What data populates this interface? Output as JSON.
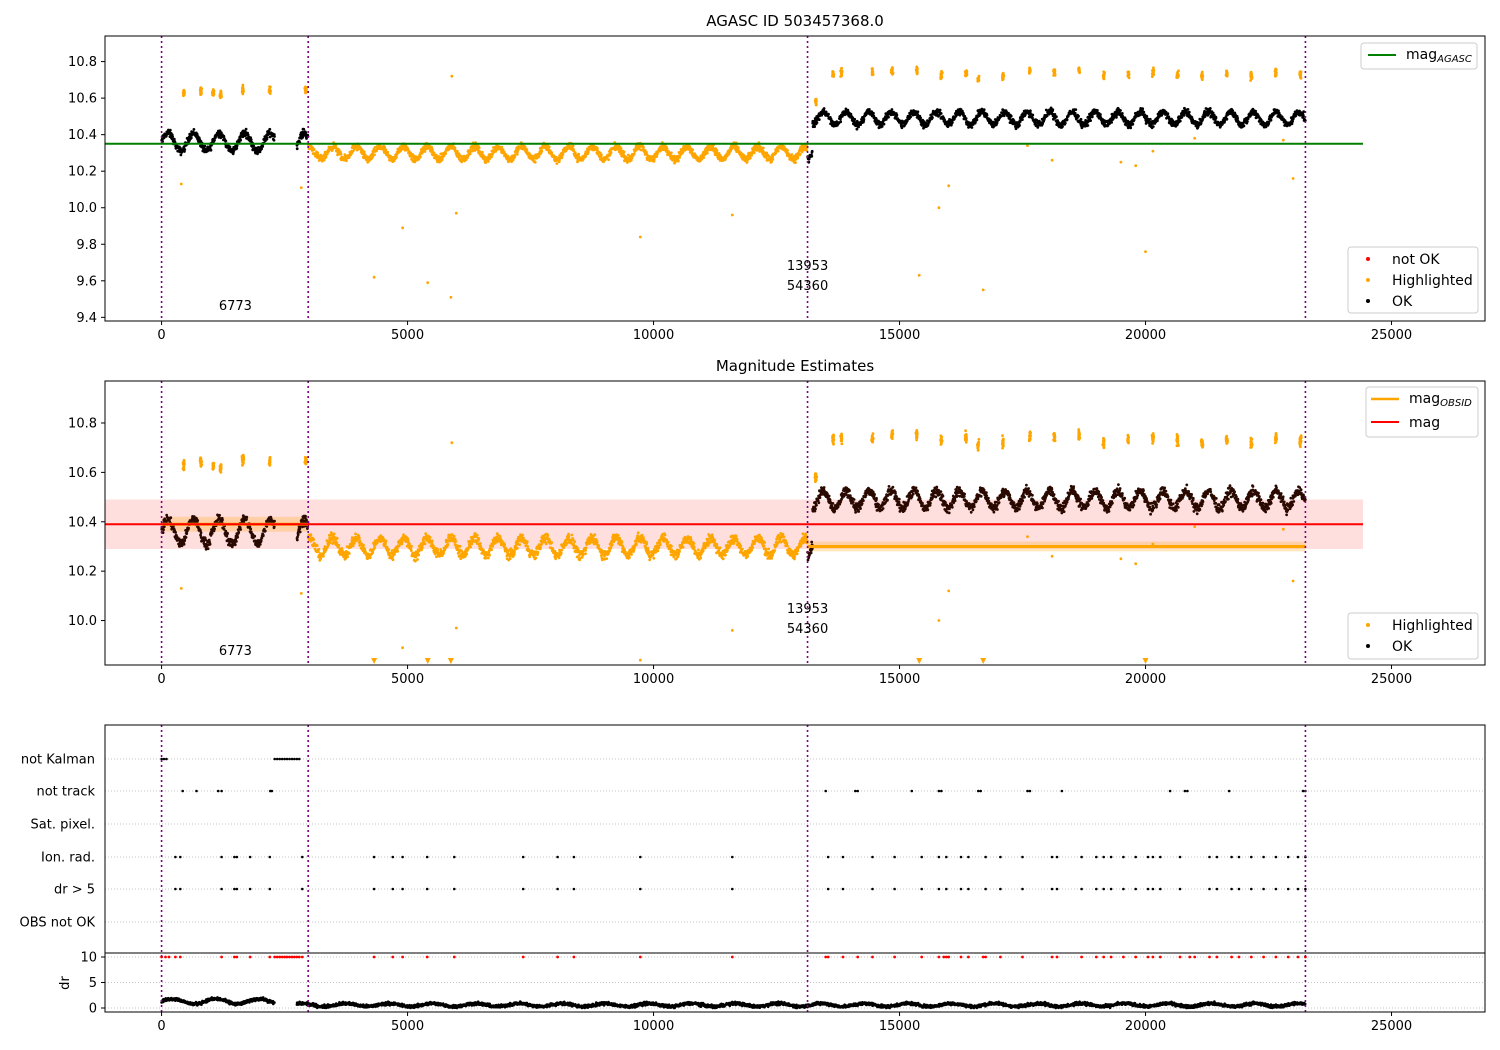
{
  "chart_data": [
    {
      "type": "scatter",
      "title": "AGASC ID 503457368.0",
      "xlim": [
        -1150,
        26900
      ],
      "ylim": [
        9.38,
        10.94
      ],
      "x_ticks": [
        0,
        5000,
        10000,
        15000,
        20000,
        25000
      ],
      "y_ticks": [
        9.4,
        9.6,
        9.8,
        10.0,
        10.2,
        10.4,
        10.6,
        10.8
      ],
      "vlines": [
        0,
        2980,
        13130,
        23250
      ],
      "reference_line": {
        "label": "mag_AGASC",
        "y": 10.35,
        "x_start": -1150,
        "x_end": 24420,
        "color": "#008000"
      },
      "obsid_labels": [
        {
          "x": 1500,
          "y": 9.44,
          "text": "6773"
        },
        {
          "x": 13130,
          "y": 9.66,
          "text": "13953"
        },
        {
          "x": 13130,
          "y": 9.55,
          "text": "54360"
        }
      ],
      "segments": [
        {
          "x_start": 0,
          "x_end": 2300,
          "center": 10.36,
          "amplitude": 0.05,
          "period": 520,
          "category": "OK"
        },
        {
          "x_start": 2750,
          "x_end": 2980,
          "center": 10.37,
          "amplitude": 0.04,
          "period": 400,
          "category": "OK"
        },
        {
          "x_start": 2980,
          "x_end": 13130,
          "center": 10.3,
          "amplitude": 0.035,
          "period": 480,
          "category": "Highlighted"
        },
        {
          "x_start": 13130,
          "x_end": 13230,
          "center": 10.29,
          "amplitude": 0.02,
          "period": 200,
          "category": "OK"
        },
        {
          "x_start": 13230,
          "x_end": 23250,
          "center": 10.49,
          "amplitude": 0.035,
          "period": 460,
          "category": "OK"
        }
      ],
      "highlight_groups": [
        {
          "x": 450,
          "y": 10.63
        },
        {
          "x": 800,
          "y": 10.64
        },
        {
          "x": 1050,
          "y": 10.63
        },
        {
          "x": 1200,
          "y": 10.62
        },
        {
          "x": 1650,
          "y": 10.65
        },
        {
          "x": 2200,
          "y": 10.64
        },
        {
          "x": 2930,
          "y": 10.65
        },
        {
          "x": 13300,
          "y": 10.58
        },
        {
          "x": 13650,
          "y": 10.73
        },
        {
          "x": 13820,
          "y": 10.74
        },
        {
          "x": 14450,
          "y": 10.74
        },
        {
          "x": 14850,
          "y": 10.75
        },
        {
          "x": 15350,
          "y": 10.75
        },
        {
          "x": 15850,
          "y": 10.73
        },
        {
          "x": 16350,
          "y": 10.74
        },
        {
          "x": 16600,
          "y": 10.71
        },
        {
          "x": 17100,
          "y": 10.72
        },
        {
          "x": 17650,
          "y": 10.75
        },
        {
          "x": 18150,
          "y": 10.74
        },
        {
          "x": 18650,
          "y": 10.75
        },
        {
          "x": 19150,
          "y": 10.72
        },
        {
          "x": 19650,
          "y": 10.73
        },
        {
          "x": 20150,
          "y": 10.74
        },
        {
          "x": 20650,
          "y": 10.73
        },
        {
          "x": 21150,
          "y": 10.72
        },
        {
          "x": 21650,
          "y": 10.73
        },
        {
          "x": 22150,
          "y": 10.72
        },
        {
          "x": 22650,
          "y": 10.74
        },
        {
          "x": 23150,
          "y": 10.73
        }
      ],
      "outliers": [
        {
          "x": 400,
          "y": 10.13
        },
        {
          "x": 2840,
          "y": 10.11
        },
        {
          "x": 4320,
          "y": 9.62
        },
        {
          "x": 4900,
          "y": 9.89
        },
        {
          "x": 5410,
          "y": 9.59
        },
        {
          "x": 5880,
          "y": 9.51
        },
        {
          "x": 5990,
          "y": 9.97
        },
        {
          "x": 5900,
          "y": 10.72
        },
        {
          "x": 9730,
          "y": 9.84
        },
        {
          "x": 11600,
          "y": 9.96
        },
        {
          "x": 15400,
          "y": 9.63
        },
        {
          "x": 15800,
          "y": 10.0
        },
        {
          "x": 16000,
          "y": 10.12
        },
        {
          "x": 16700,
          "y": 9.55
        },
        {
          "x": 17600,
          "y": 10.34
        },
        {
          "x": 18100,
          "y": 10.26
        },
        {
          "x": 19500,
          "y": 10.25
        },
        {
          "x": 19800,
          "y": 10.23
        },
        {
          "x": 20000,
          "y": 9.76
        },
        {
          "x": 20150,
          "y": 10.31
        },
        {
          "x": 21000,
          "y": 10.38
        },
        {
          "x": 23000,
          "y": 10.16
        },
        {
          "x": 22800,
          "y": 10.37
        }
      ],
      "legend_upper": [
        "mag_AGASC"
      ],
      "legend_lower": [
        {
          "label": "not OK",
          "color": "#ff0000"
        },
        {
          "label": "Highlighted",
          "color": "#ffa500"
        },
        {
          "label": "OK",
          "color": "#000000"
        }
      ]
    },
    {
      "type": "scatter",
      "title": "Magnitude Estimates",
      "xlim": [
        -1150,
        26900
      ],
      "ylim": [
        9.82,
        10.97
      ],
      "x_ticks": [
        0,
        5000,
        10000,
        15000,
        20000,
        25000
      ],
      "y_ticks": [
        10.0,
        10.2,
        10.4,
        10.6,
        10.8
      ],
      "vlines": [
        0,
        2980,
        13130,
        23250
      ],
      "mag_band": {
        "y": 10.39,
        "low": 10.29,
        "high": 10.49,
        "x_start": -1150,
        "x_end": 24420,
        "color": "#ff0000"
      },
      "obsid_mags": [
        {
          "x_start": 0,
          "x_end": 2980,
          "y": 10.39,
          "low": 10.36,
          "high": 10.42
        },
        {
          "x_start": 13130,
          "x_end": 23250,
          "y": 10.3,
          "low": 10.28,
          "high": 10.32
        }
      ],
      "obsid_labels": [
        {
          "x": 1500,
          "y": 9.86,
          "text": "6773"
        },
        {
          "x": 13130,
          "y": 10.03,
          "text": "13953"
        },
        {
          "x": 13130,
          "y": 9.95,
          "text": "54360"
        }
      ],
      "lower_limit_markers": [
        {
          "x": 4320
        },
        {
          "x": 5410
        },
        {
          "x": 5880
        },
        {
          "x": 15400
        },
        {
          "x": 16700
        },
        {
          "x": 20000
        }
      ],
      "legend_upper": [
        {
          "label": "mag_OBSID",
          "color": "#ffa500"
        },
        {
          "label": "mag",
          "color": "#ff0000"
        }
      ],
      "legend_lower": [
        {
          "label": "Highlighted",
          "color": "#ffa500"
        },
        {
          "label": "OK",
          "color": "#000000"
        }
      ]
    },
    {
      "type": "scatter",
      "xlim": [
        -1150,
        26900
      ],
      "x_ticks": [
        0,
        5000,
        10000,
        15000,
        20000,
        25000
      ],
      "vlines": [
        0,
        2980,
        13130,
        23250
      ],
      "flag_rows": [
        "not Kalman",
        "not track",
        "Sat. pixel.",
        "Ion. rad.",
        "dr > 5",
        "OBS not OK"
      ],
      "flags": {
        "not Kalman": [
          0,
          50,
          100,
          2300,
          2350,
          2400,
          2450,
          2500,
          2550,
          2600,
          2650,
          2700,
          2750,
          2800
        ],
        "not track": [
          430,
          710,
          1150,
          1220,
          2210,
          2240,
          13500,
          14100,
          14150,
          15250,
          15800,
          15850,
          16600,
          16650,
          17600,
          17650,
          18300,
          20500,
          20800,
          20850,
          21700,
          23200,
          23250
        ],
        "Sat. pixel.": [],
        "Ion. rad.": [
          280,
          380,
          1220,
          1480,
          1530,
          1800,
          2200,
          2860,
          4320,
          4700,
          4900,
          5400,
          5950,
          7350,
          8050,
          8380,
          9730,
          11600,
          13550,
          13850,
          14450,
          14900,
          15450,
          15800,
          15950,
          16250,
          16400,
          16750,
          17050,
          17500,
          18100,
          18200,
          18700,
          19000,
          19150,
          19300,
          19550,
          19800,
          20050,
          20150,
          20300,
          20700,
          21300,
          21450,
          21750,
          21900,
          22150,
          22400,
          22650,
          22900,
          23100,
          23250
        ],
        "dr > 5": [
          280,
          380,
          1220,
          1480,
          1530,
          1800,
          2200,
          2860,
          4320,
          4700,
          4900,
          5400,
          5950,
          7350,
          8050,
          8380,
          9730,
          11600,
          13550,
          13850,
          14450,
          14900,
          15450,
          15800,
          15950,
          16250,
          16400,
          16750,
          17050,
          17500,
          18100,
          18200,
          18700,
          19000,
          19150,
          19300,
          19550,
          19800,
          20050,
          20150,
          20300,
          20700,
          21300,
          21450,
          21750,
          21900,
          22150,
          22400,
          22650,
          22900,
          23100,
          23250
        ],
        "OBS not OK": []
      },
      "dr_panel": {
        "ylabel": "dr",
        "ylim": [
          0,
          10
        ],
        "y_ticks": [
          0,
          5,
          10
        ],
        "segments": [
          {
            "x_start": 0,
            "x_end": 2300,
            "center": 1.3,
            "amplitude": 0.5
          },
          {
            "x_start": 2750,
            "x_end": 23250,
            "center": 0.6,
            "amplitude": 0.3
          }
        ],
        "red_markers_y": 10
      }
    }
  ]
}
